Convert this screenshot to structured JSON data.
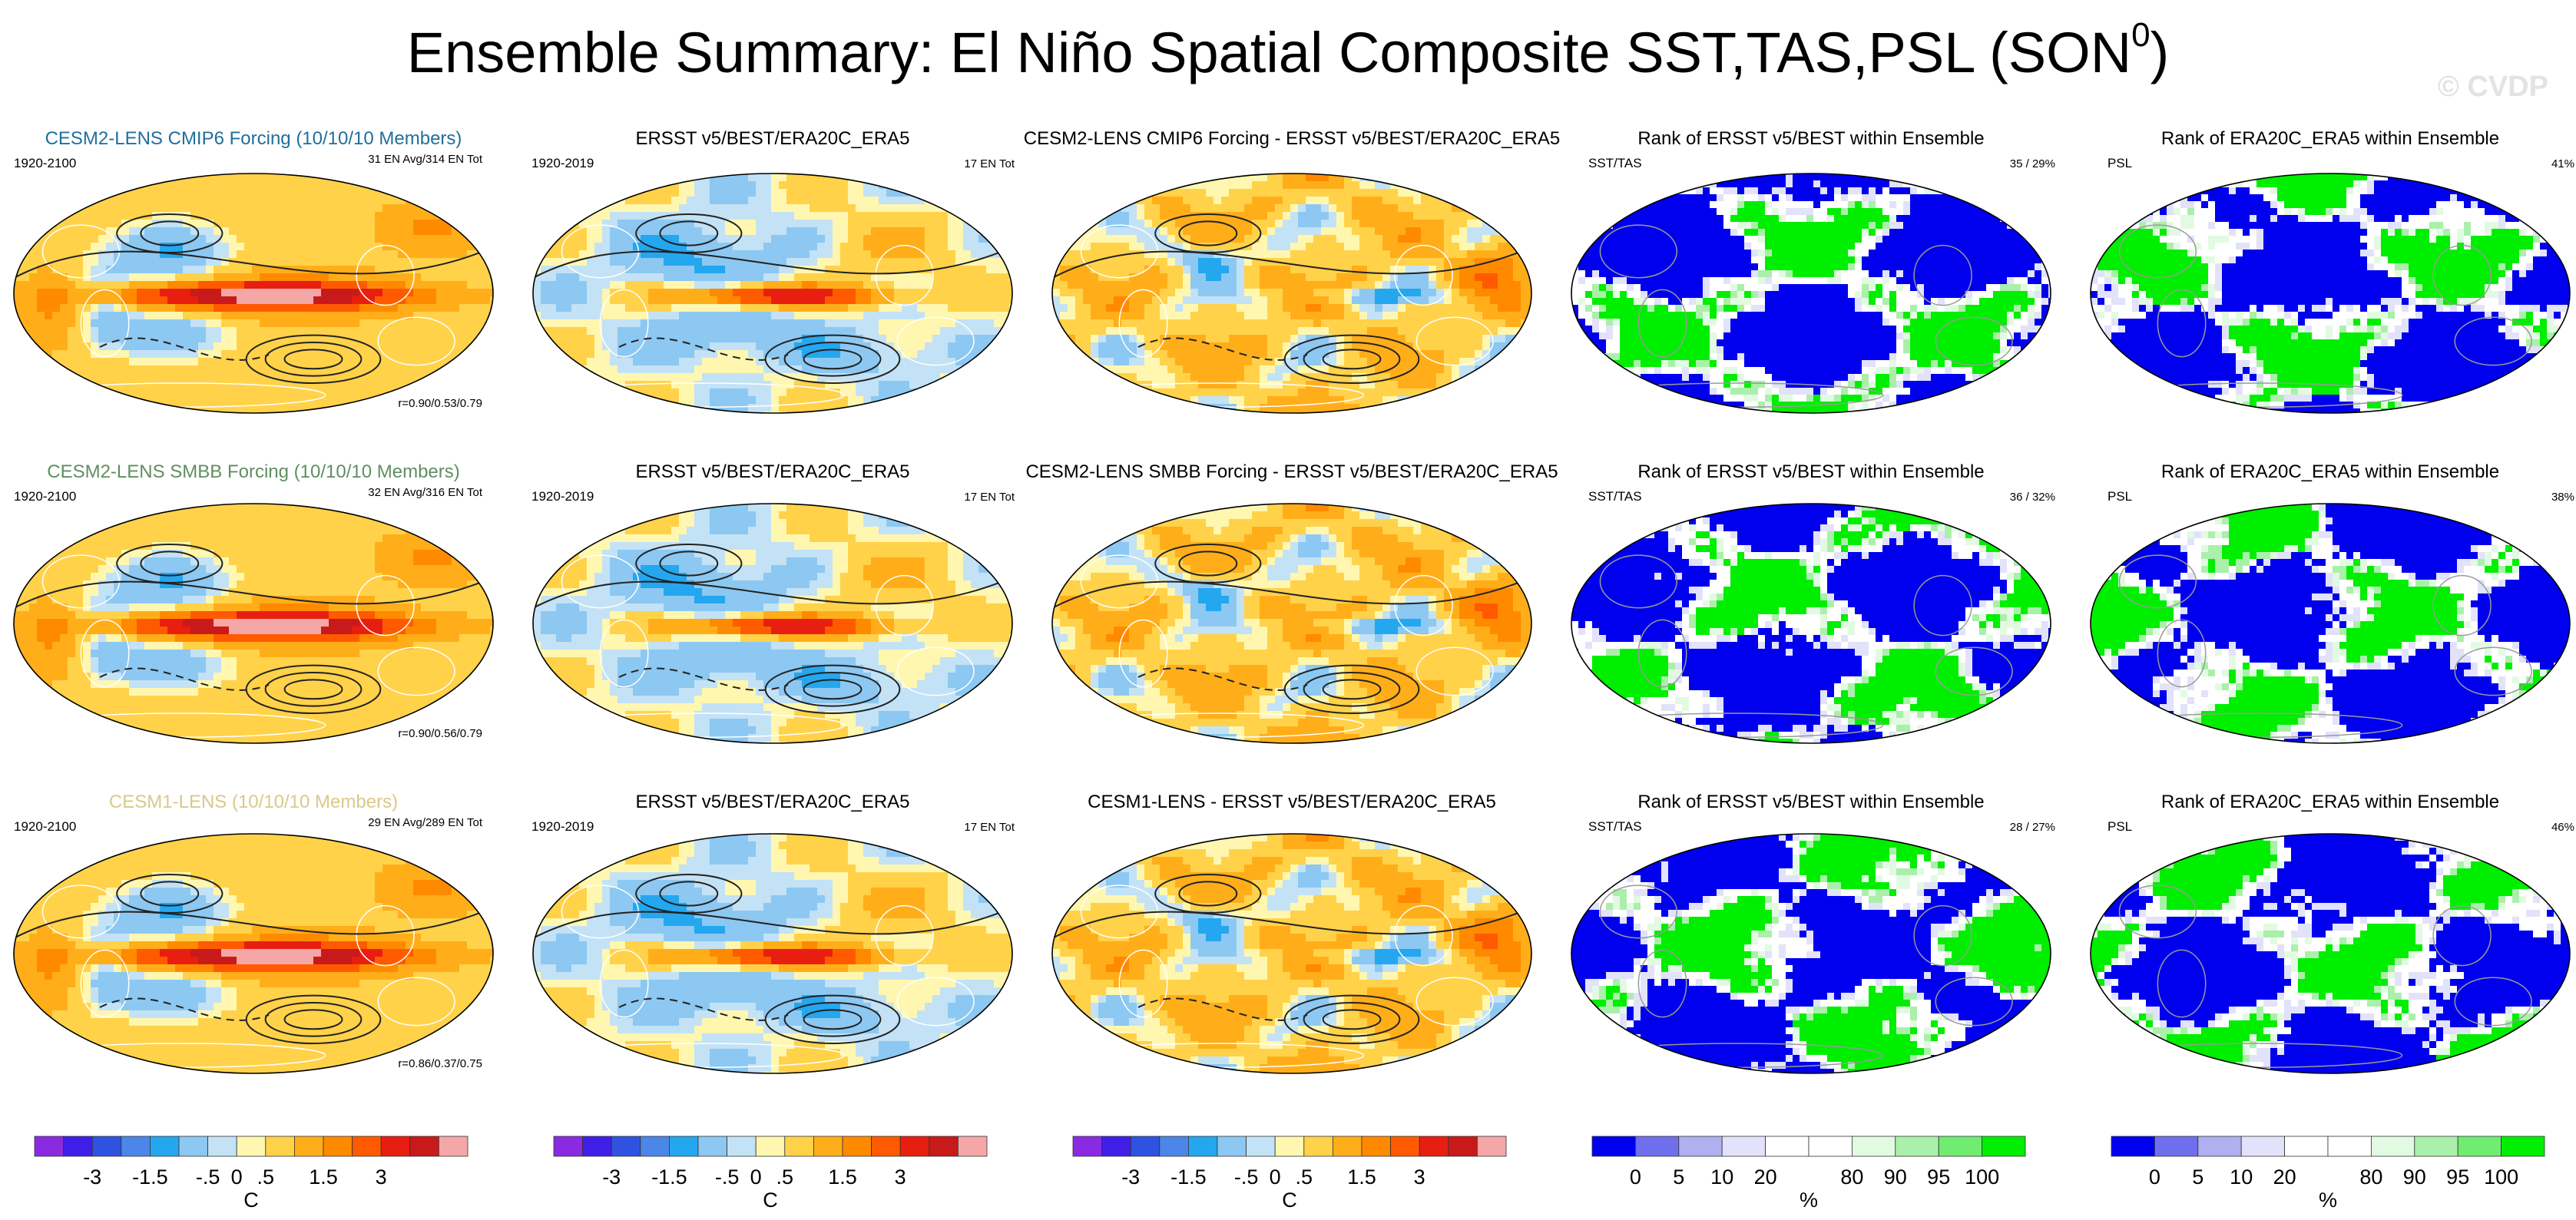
{
  "title": {
    "text": "Ensemble Summary: El Niño Spatial Composite SST,TAS,PSL (SON",
    "sup": "0",
    "close": ")"
  },
  "watermark": "© CVDP",
  "chart_data": [
    {
      "type": "heatmap",
      "kind": "model",
      "title": "CESM2-LENS CMIP6 Forcing (10/10/10 Members)",
      "title_color": "#1f6f9c",
      "left": "1920-2100",
      "right": "31 EN Avg/314 EN Tot",
      "corner": "r=0.90/0.53/0.79",
      "eastern_warm": 1.0
    },
    {
      "type": "heatmap",
      "kind": "obs",
      "title": "ERSST v5/BEST/ERA20C_ERA5",
      "left": "1920-2019",
      "right": "17 EN Tot",
      "corner": "",
      "eastern_warm": 0.9
    },
    {
      "type": "heatmap",
      "kind": "diff",
      "title": "CESM2-LENS CMIP6 Forcing - ERSST v5/BEST/ERA20C_ERA5",
      "left": "",
      "right": "",
      "corner": ""
    },
    {
      "type": "heatmap",
      "kind": "rank",
      "title": "Rank of ERSST v5/BEST within Ensemble",
      "left": "SST/TAS",
      "right": "35 /  29%",
      "corner": "",
      "seed": 11
    },
    {
      "type": "heatmap",
      "kind": "rank",
      "title": "Rank of ERA20C_ERA5 within Ensemble",
      "left": "PSL",
      "right": "41%",
      "corner": "",
      "seed": 21
    },
    {
      "type": "heatmap",
      "kind": "model",
      "title": "CESM2-LENS SMBB Forcing (10/10/10 Members)",
      "title_color": "#5f8f61",
      "left": "1920-2100",
      "right": "32 EN Avg/316 EN Tot",
      "corner": "r=0.90/0.56/0.79",
      "eastern_warm": 1.05
    },
    {
      "type": "heatmap",
      "kind": "obs",
      "title": "ERSST v5/BEST/ERA20C_ERA5",
      "left": "1920-2019",
      "right": "17 EN Tot",
      "corner": "",
      "eastern_warm": 0.9
    },
    {
      "type": "heatmap",
      "kind": "diff",
      "title": "CESM2-LENS SMBB Forcing - ERSST v5/BEST/ERA20C_ERA5",
      "left": "",
      "right": "",
      "corner": ""
    },
    {
      "type": "heatmap",
      "kind": "rank",
      "title": "Rank of ERSST v5/BEST within Ensemble",
      "left": "SST/TAS",
      "right": "36 /  32%",
      "corner": "",
      "seed": 12
    },
    {
      "type": "heatmap",
      "kind": "rank",
      "title": "Rank of ERA20C_ERA5 within Ensemble",
      "left": "PSL",
      "right": "38%",
      "corner": "",
      "seed": 22
    },
    {
      "type": "heatmap",
      "kind": "model",
      "title": "CESM1-LENS (10/10/10 Members)",
      "title_color": "#d9c98a",
      "left": "1920-2100",
      "right": "29 EN Avg/289 EN Tot",
      "corner": "r=0.86/0.37/0.75",
      "eastern_warm": 1.0
    },
    {
      "type": "heatmap",
      "kind": "obs",
      "title": "ERSST v5/BEST/ERA20C_ERA5",
      "left": "1920-2019",
      "right": "17 EN Tot",
      "corner": "",
      "eastern_warm": 0.9
    },
    {
      "type": "heatmap",
      "kind": "diff",
      "title": "CESM1-LENS - ERSST v5/BEST/ERA20C_ERA5",
      "left": "",
      "right": "",
      "corner": ""
    },
    {
      "type": "heatmap",
      "kind": "rank",
      "title": "Rank of ERSST v5/BEST within Ensemble",
      "left": "SST/TAS",
      "right": "28 /  27%",
      "corner": "",
      "seed": 13
    },
    {
      "type": "heatmap",
      "kind": "rank",
      "title": "Rank of ERA20C_ERA5 within Ensemble",
      "left": "PSL",
      "right": "46%",
      "corner": "",
      "seed": 23
    }
  ],
  "colorbars": {
    "temperature": {
      "colors": [
        "#8a2be2",
        "#3f1ee8",
        "#2f52e0",
        "#4b86e8",
        "#24a7ef",
        "#8cc8f2",
        "#c3e2f6",
        "#fff7b0",
        "#ffd24a",
        "#ffae1a",
        "#ff8a00",
        "#ff5a00",
        "#e81e10",
        "#c81a1a",
        "#f5a6a6"
      ],
      "labels": [
        "-3",
        "-1.5",
        "-.5",
        "0",
        ".5",
        "1.5",
        "3"
      ],
      "label_positions": [
        2,
        4,
        6,
        7,
        8,
        10,
        12
      ],
      "unit": "C"
    },
    "rank": {
      "colors": [
        "#0000ee",
        "#6f6fee",
        "#b0b0f0",
        "#e2e2fa",
        "#ffffff",
        "#ffffff",
        "#e2fae2",
        "#aaf0aa",
        "#70ec70",
        "#00ee00"
      ],
      "labels": [
        "0",
        "5",
        "10",
        "20",
        "80",
        "90",
        "95",
        "100"
      ],
      "label_positions": [
        1,
        2,
        3,
        4,
        6,
        7,
        8,
        9
      ],
      "unit": "%"
    }
  }
}
